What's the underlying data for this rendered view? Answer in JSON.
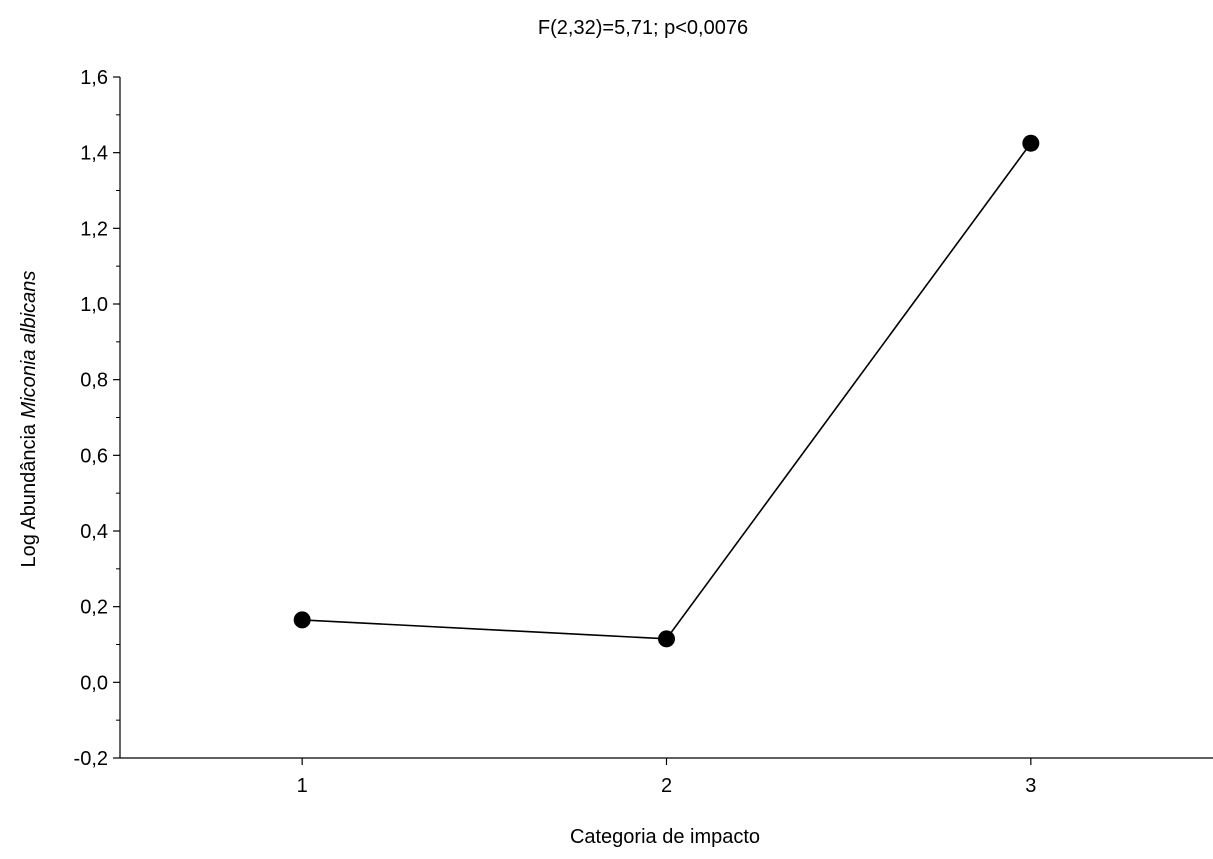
{
  "chart_data": {
    "type": "line",
    "title": "F(2,32)=5,71; p<0,0076",
    "xlabel": "Categoria de impacto",
    "ylabel_prefix": "Log Abundância ",
    "ylabel_species": "Miconia albicans",
    "categories": [
      "1",
      "2",
      "3"
    ],
    "series": [
      {
        "values": [
          0.165,
          0.115,
          1.425
        ]
      }
    ],
    "ylim": [
      -0.2,
      1.6
    ],
    "xlim": [
      0.5,
      3.5
    ],
    "y_ticks": [
      -0.2,
      0.0,
      0.2,
      0.4,
      0.6,
      0.8,
      1.0,
      1.2,
      1.4,
      1.6
    ],
    "y_tick_labels": [
      "-0,2",
      "0,0",
      "0,2",
      "0,4",
      "0,6",
      "0,8",
      "1,0",
      "1,2",
      "1,4",
      "1,6"
    ],
    "grid": false,
    "legend": "none",
    "line_color": "#000000",
    "marker_color": "#000000"
  }
}
